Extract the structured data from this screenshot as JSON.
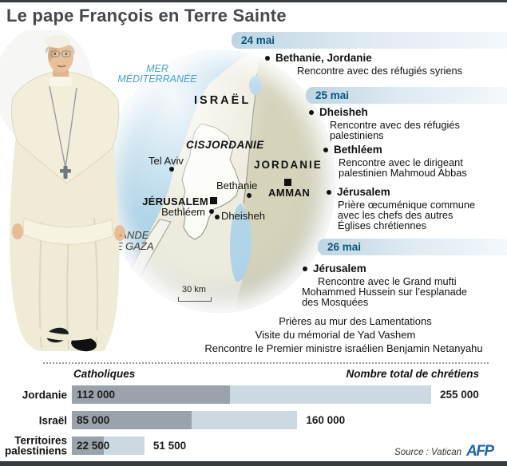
{
  "title": "Le pape François en Terre Sainte",
  "map": {
    "sea_label": "MER\nMÉDITERRANÉE",
    "regions": {
      "israel": "ISRAËL",
      "cisjordanie": "CISJORDANIE",
      "jordanie": "JORDANIE"
    },
    "cities": {
      "tel_aviv": "Tel Aviv",
      "jerusalem": "JÉRUSALEM",
      "bethleem": "Bethléem",
      "dheisheh": "Dheisheh",
      "bethanie": "Bethanie",
      "amman": "AMMAN"
    },
    "gaza_label": "BANDE\nDE GAZA",
    "scale_label": "30 km"
  },
  "timeline": [
    {
      "date": "24 mai",
      "events": [
        {
          "place": "Bethanie, Jordanie",
          "desc": "Rencontre avec des réfugiés syriens"
        }
      ]
    },
    {
      "date": "25 mai",
      "events": [
        {
          "place": "Dheisheh",
          "desc": "Rencontre avec des réfugiés\npalestiniens"
        },
        {
          "place": "Bethléem",
          "desc": "Rencontre avec le dirigeant\npalestinien Mahmoud Abbas"
        },
        {
          "place": "Jérusalem",
          "desc": "Prière œcuménique commune\navec les chefs des autres\nÉglises chrétiennes"
        }
      ]
    },
    {
      "date": "26 mai",
      "events": [
        {
          "place": "Jérusalem",
          "desc": "Rencontre avec le Grand mufti\nMohammed Hussein sur l’esplanade\ndes Mosquées"
        }
      ],
      "extra_events": [
        "Prières au mur des Lamentations",
        "Visite du mémorial de Yad Vashem",
        "Rencontre le Premier ministre israélien Benjamin Netanyahu"
      ]
    }
  ],
  "chart_data": {
    "type": "bar",
    "categories": [
      "Jordanie",
      "Israël",
      "Territoires\npalestiniens"
    ],
    "series": [
      {
        "name": "Catholiques",
        "values": [
          112000,
          85000,
          22500
        ],
        "labels": [
          "112 000",
          "85 000",
          "22 500"
        ],
        "color": "#9aa3ab"
      },
      {
        "name": "Nombre total de chrétiens",
        "values": [
          255000,
          160000,
          51500
        ],
        "labels": [
          "255 000",
          "160 000",
          "51 500"
        ],
        "color": "#cdd9e2"
      }
    ],
    "xlim": [
      0,
      255000
    ],
    "legend_position": "top",
    "grid": false
  },
  "footer": {
    "source": "Source : Vatican",
    "agency": "AFP"
  },
  "colors": {
    "accent_blue": "#09567c",
    "bar_dark": "#9aa3ab",
    "bar_light": "#cdd9e2",
    "afp_blue": "#2066ad",
    "sea": "#b0d4e8",
    "israel_land": "#edebdd",
    "jordan_land": "#d5d3ba"
  }
}
